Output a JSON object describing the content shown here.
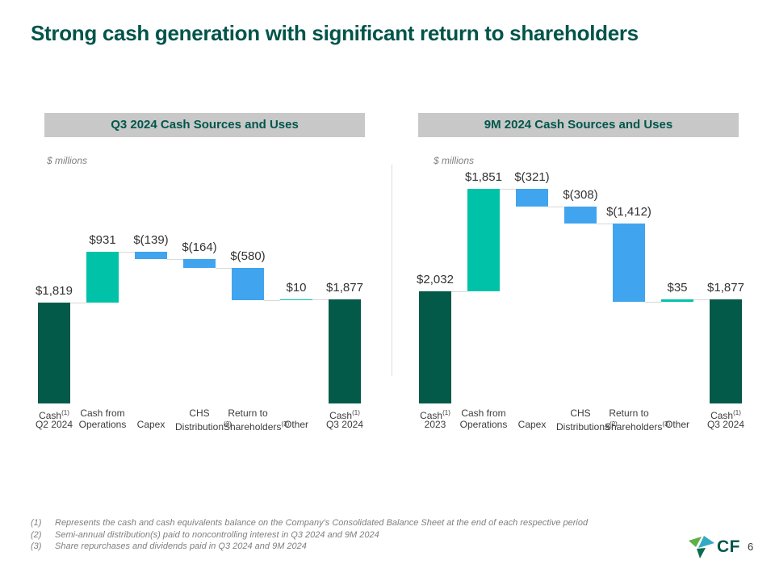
{
  "slide": {
    "title": "Strong cash generation with significant return to shareholders",
    "page_number": "6",
    "logo_text": "CF"
  },
  "colors": {
    "title_text": "#00544A",
    "total_bar": "#045A49",
    "increase_bar": "#00C2A8",
    "decrease_bar": "#41A4EE",
    "header_bg": "#C8C8C8",
    "connector": "#D8D8D8"
  },
  "chart_data": [
    {
      "type": "bar",
      "subtype": "waterfall",
      "title": "Q3 2024 Cash Sources and Uses",
      "units": "$ millions",
      "ylim": [
        0,
        4380
      ],
      "grid": false,
      "legend": "none",
      "bars": [
        {
          "label1": "Cash",
          "sup1": "(1)",
          "label2": "Q2 2024",
          "kind": "total",
          "value": 1819,
          "display": "$1,819"
        },
        {
          "label1": "Cash from",
          "label2": "Operations",
          "kind": "increase",
          "value": 931,
          "display": "$931"
        },
        {
          "label1": "",
          "label2": "Capex",
          "kind": "decrease",
          "value": -139,
          "display": "$(139)"
        },
        {
          "label1": "CHS",
          "label2": "Distribution",
          "sup2": "(2)",
          "kind": "decrease",
          "value": -164,
          "display": "$(164)"
        },
        {
          "label1": "Return to",
          "label2": "Shareholders",
          "sup2": "(3)",
          "kind": "decrease",
          "value": -580,
          "display": "$(580)"
        },
        {
          "label1": "",
          "label2": "Other",
          "kind": "increase",
          "value": 10,
          "display": "$10"
        },
        {
          "label1": "Cash",
          "sup1": "(1)",
          "label2": "Q3 2024",
          "kind": "total",
          "value": 1877,
          "display": "$1,877"
        }
      ]
    },
    {
      "type": "bar",
      "subtype": "waterfall",
      "title": "9M 2024 Cash Sources and Uses",
      "units": "$ millions",
      "ylim": [
        0,
        4380
      ],
      "grid": false,
      "legend": "none",
      "bars": [
        {
          "label1": "Cash",
          "sup1": "(1)",
          "label2": "2023",
          "kind": "total",
          "value": 2032,
          "display": "$2,032"
        },
        {
          "label1": "Cash from",
          "label2": "Operations",
          "kind": "increase",
          "value": 1851,
          "display": "$1,851"
        },
        {
          "label1": "",
          "label2": "Capex",
          "kind": "decrease",
          "value": -321,
          "display": "$(321)"
        },
        {
          "label1": "CHS",
          "label2": "Distributions",
          "sup2": "(2)",
          "kind": "decrease",
          "value": -308,
          "display": "$(308)"
        },
        {
          "label1": "Return to",
          "label2": "Shareholders",
          "sup2": "(3)",
          "kind": "decrease",
          "value": -1412,
          "display": "$(1,412)"
        },
        {
          "label1": "",
          "label2": "Other",
          "kind": "increase",
          "value": 35,
          "display": "$35"
        },
        {
          "label1": "Cash",
          "sup1": "(1)",
          "label2": "Q3 2024",
          "kind": "total",
          "value": 1877,
          "display": "$1,877"
        }
      ]
    }
  ],
  "footnotes": [
    {
      "marker": "(1)",
      "text": "Represents the cash and cash equivalents balance on the Company's Consolidated Balance Sheet at the end of each respective period"
    },
    {
      "marker": "(2)",
      "text": "Semi-annual distribution(s) paid to noncontrolling interest in Q3 2024 and 9M 2024"
    },
    {
      "marker": "(3)",
      "text": "Share repurchases and dividends paid in Q3 2024 and 9M 2024"
    }
  ]
}
